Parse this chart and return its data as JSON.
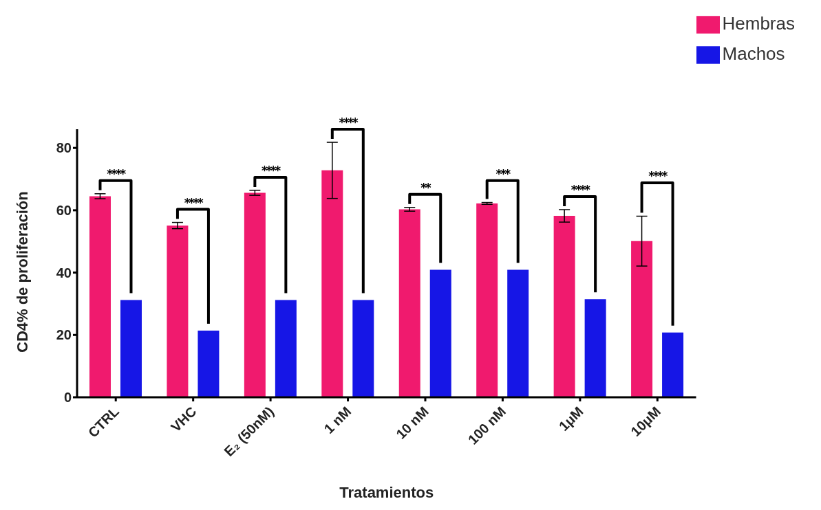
{
  "chart_data": {
    "type": "bar",
    "xlabel": "Tratamientos",
    "ylabel": "CD4% de proliferación",
    "categories": [
      "CTRL",
      "VHC",
      "E₂ (50nM)",
      "1 nM",
      "10 nM",
      "100 nM",
      "1μM",
      "10μM"
    ],
    "series": [
      {
        "name": "Hembras",
        "color": "#f01a6e",
        "values": [
          64.5,
          55.1,
          65.6,
          72.8,
          60.3,
          62.2,
          58.2,
          50.1
        ],
        "errors": [
          0.8,
          1,
          0.8,
          9,
          0.6,
          0.3,
          2,
          8
        ]
      },
      {
        "name": "Machos",
        "color": "#1616e6",
        "values": [
          31.2,
          21.4,
          31.2,
          31.2,
          40.9,
          40.9,
          31.5,
          20.8
        ]
      }
    ],
    "ylim": [
      0,
      86
    ],
    "yticks": [
      0,
      20,
      40,
      60,
      80
    ],
    "grid": false,
    "legend": "top right",
    "annotations": [
      "****",
      "****",
      "****",
      "****",
      "**",
      "***",
      "****",
      "****"
    ]
  }
}
